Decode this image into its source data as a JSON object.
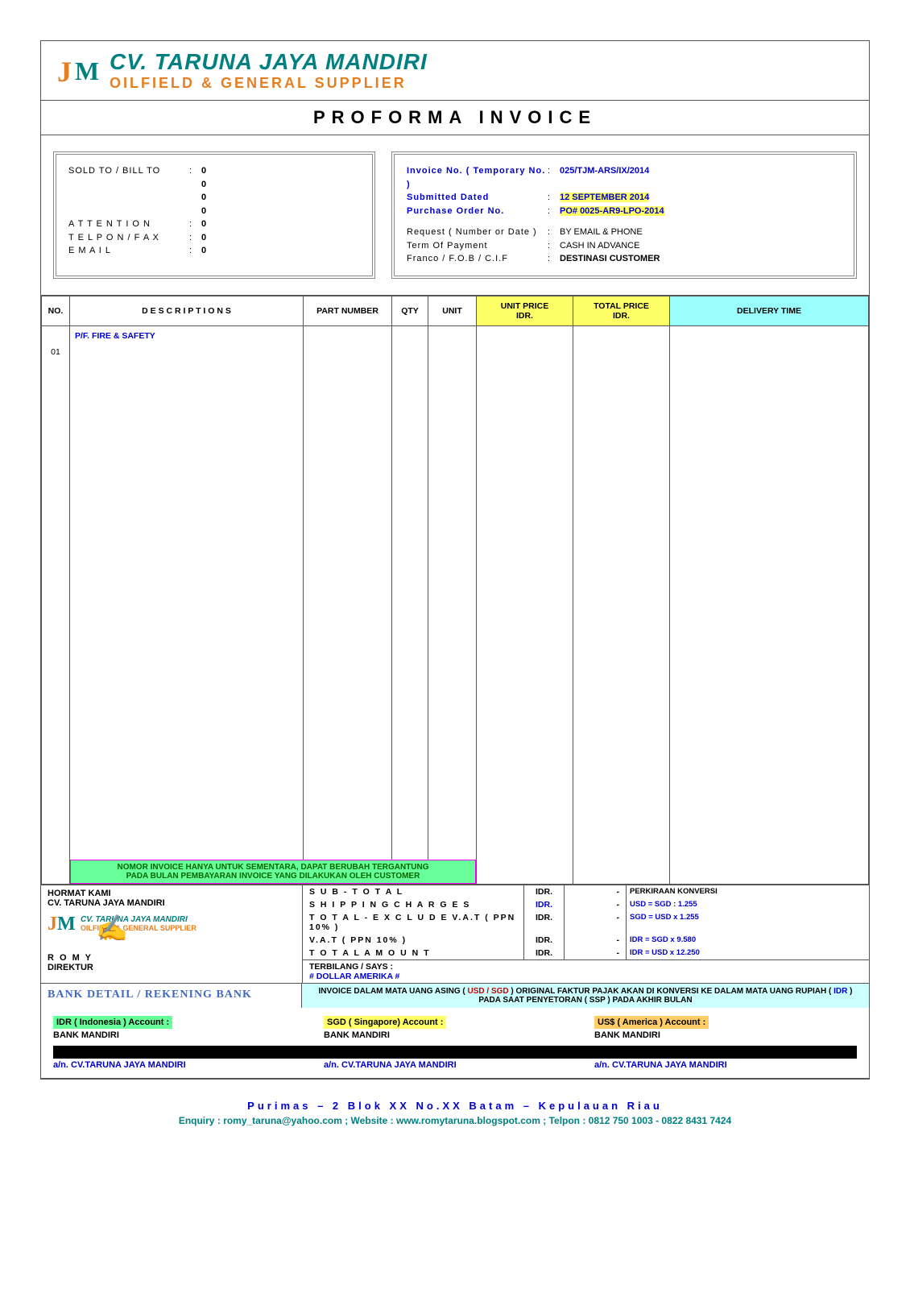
{
  "company": {
    "name": "CV. TARUNA JAYA MANDIRI",
    "subtitle": "OILFIELD & GENERAL SUPPLIER"
  },
  "doc_title": "PROFORMA INVOICE",
  "sold_to": {
    "label": "SOLD TO / BILL TO",
    "lines": [
      "0",
      "0",
      "0",
      "0"
    ],
    "attention_label": "A T T E N T I O N",
    "attention": "0",
    "telfax_label": "T E L P O N / F A X",
    "telfax": "0",
    "email_label": "E M A I L",
    "email": "0"
  },
  "invoice_info": {
    "inv_no_label": "Invoice No. ( Temporary No. )",
    "inv_no": "025/TJM-ARS/IX/2014",
    "submitted_label": "Submitted Dated",
    "submitted": "12 SEPTEMBER 2014",
    "po_label": "Purchase Order No.",
    "po": "PO# 0025-AR9-LPO-2014",
    "request_label": "Request ( Number or Date )",
    "request": "BY EMAIL & PHONE",
    "term_label": "Term Of Payment",
    "term": "CASH IN ADVANCE",
    "franco_label": "Franco / F.O.B / C.I.F",
    "franco": "DESTINASI CUSTOMER"
  },
  "table": {
    "headers": {
      "no": "NO.",
      "desc": "D E S C R I P T I O N S",
      "part": "PART NUMBER",
      "qty": "QTY",
      "unit": "UNIT",
      "uprice1": "UNIT PRICE",
      "uprice2": "IDR.",
      "tprice1": "TOTAL PRICE",
      "tprice2": "IDR.",
      "deliv": "DELIVERY TIME"
    },
    "category": "P/F. FIRE & SAFETY",
    "rows": [
      {
        "no": "01"
      }
    ],
    "note_line1": "NOMOR INVOICE HANYA UNTUK SEMENTARA,  DAPAT BERUBAH TERGANTUNG",
    "note_line2": "PADA  BULAN  PEMBAYARAN INVOICE YANG DILAKUKAN OLEH CUSTOMER"
  },
  "sign": {
    "hormat": "HORMAT KAMI",
    "company": "CV. TARUNA JAYA MANDIRI",
    "logo_company": "CV. TARUNA JAYA MANDIRI",
    "logo_sub": "OILFIELD & GENERAL SUPPLIER",
    "name": "R O M Y",
    "title": "DIREKTUR"
  },
  "totals": {
    "rows": [
      {
        "label": "S U B - T O T A L",
        "curr": "IDR.",
        "val": "-",
        "conv": "PERKIRAAN KONVERSI",
        "curr_blue": false
      },
      {
        "label": "S H I P P I N G   C H A R G E S",
        "curr": "IDR.",
        "val": "-",
        "conv": "USD = SGD  : 1.255",
        "curr_blue": true
      },
      {
        "label": "T O T A L  - E X C L U D E  V.A.T ( PPN 10% )",
        "curr": "IDR.",
        "val": "-",
        "conv": "SGD = USD  x 1.255",
        "curr_blue": false
      },
      {
        "label": "V.A.T ( PPN 10% )",
        "curr": "IDR.",
        "val": "-",
        "conv": "IDR  = SGD  x 9.580",
        "curr_blue": false
      },
      {
        "label": "T O T A L    A M O U N T",
        "curr": "IDR.",
        "val": "-",
        "conv": "IDR  = USD  x 12.250",
        "curr_blue": false
      }
    ],
    "terbilang_label": "TERBILANG  / SAYS :",
    "terbilang_value": "#  DOLLAR AMERIKA #"
  },
  "bank": {
    "title": "BANK DETAIL / REKENING BANK",
    "note_prefix": "INVOICE DALAM MATA UANG ASING ( ",
    "note_usdsgd": "USD / SGD",
    "note_mid": " ) ORIGINAL FAKTUR PAJAK AKAN DI KONVERSI KE DALAM MATA UANG RUPIAH ( ",
    "note_idr": "IDR",
    "note_suffix": " ) PADA SAAT PENYETORAN  ( SSP ) PADA AKHIR BULAN",
    "accounts": [
      {
        "title": "IDR ( Indonesia ) Account :",
        "bank": "BANK MANDIRI",
        "name": "a/n. CV.TARUNA JAYA MANDIRI",
        "hl": "hl-green"
      },
      {
        "title": "SGD ( Singapore) Account :",
        "bank": "BANK MANDIRI",
        "name": "a/n. CV.TARUNA JAYA MANDIRI",
        "hl": "hl-yellow"
      },
      {
        "title": "US$ ( America ) Account :",
        "bank": "BANK MANDIRI",
        "name": "a/n. CV.TARUNA JAYA MANDIRI",
        "hl": "hl-orange"
      }
    ]
  },
  "footer": {
    "address": "Purimas – 2  Blok XX  No.XX  Batam  –   Kepulauan   Riau",
    "contact": "Enquiry : romy_taruna@yahoo.com ; Website : www.romytaruna.blogspot.com ;  Telpon : 0812 750 1003 - 0822 8431 7424"
  },
  "colors": {
    "teal": "#008080",
    "orange": "#e67e22",
    "blue": "#0000cc",
    "hl_yellow": "#ffff66",
    "hl_green": "#66ff99",
    "hl_orange": "#ffcc66",
    "hl_cyan": "#ccffff",
    "magenta": "#ff00ff"
  }
}
